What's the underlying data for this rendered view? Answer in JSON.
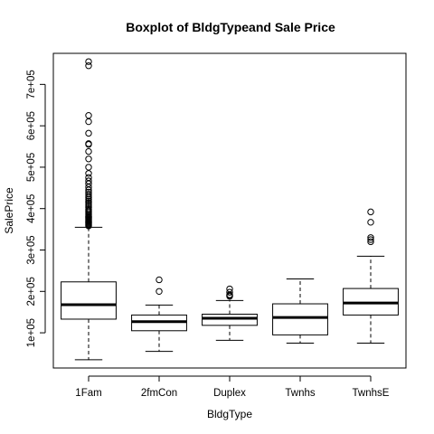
{
  "chart_data": {
    "type": "boxplot",
    "title": "Boxplot of BldgTypeand Sale Price",
    "xlabel": "BldgType",
    "ylabel": "SalePrice",
    "ylim": [
      15000,
      775000
    ],
    "yticks": [
      100000,
      200000,
      300000,
      400000,
      500000,
      600000,
      700000
    ],
    "ytick_labels": [
      "1e+05",
      "2e+05",
      "3e+05",
      "4e+05",
      "5e+05",
      "6e+05",
      "7e+05"
    ],
    "grid": false,
    "categories": [
      "1Fam",
      "2fmCon",
      "Duplex",
      "Twnhs",
      "TwnhsE"
    ],
    "boxes": [
      {
        "category": "1Fam",
        "whisker_low": 35000,
        "q1": 133000,
        "median": 168000,
        "q3": 223000,
        "whisker_high": 355000,
        "outliers": [
          358000,
          360000,
          362000,
          364000,
          366000,
          368000,
          370000,
          372000,
          374000,
          376000,
          378000,
          380000,
          382000,
          385000,
          388000,
          392000,
          395000,
          398000,
          402000,
          406000,
          410000,
          414000,
          418000,
          422000,
          426000,
          430000,
          435000,
          440000,
          445000,
          452000,
          460000,
          467000,
          475000,
          485000,
          500000,
          520000,
          538000,
          555000,
          557000,
          582000,
          610000,
          625000,
          745000,
          755000
        ]
      },
      {
        "category": "2fmCon",
        "whisker_low": 55000,
        "q1": 105000,
        "median": 127000,
        "q3": 143000,
        "whisker_high": 167000,
        "outliers": [
          200000,
          228000
        ]
      },
      {
        "category": "Duplex",
        "whisker_low": 82000,
        "q1": 118000,
        "median": 135000,
        "q3": 145000,
        "whisker_high": 178000,
        "outliers": [
          188000,
          190000,
          192000,
          198000,
          206000
        ]
      },
      {
        "category": "Twnhs",
        "whisker_low": 75000,
        "q1": 95000,
        "median": 137000,
        "q3": 170000,
        "whisker_high": 230000,
        "outliers": []
      },
      {
        "category": "TwnhsE",
        "whisker_low": 75000,
        "q1": 143000,
        "median": 172000,
        "q3": 207000,
        "whisker_high": 285000,
        "outliers": [
          320000,
          325000,
          330000,
          367000,
          392000
        ]
      }
    ],
    "colors": {
      "box_fill": "#ffffff",
      "stroke": "#000000"
    }
  }
}
